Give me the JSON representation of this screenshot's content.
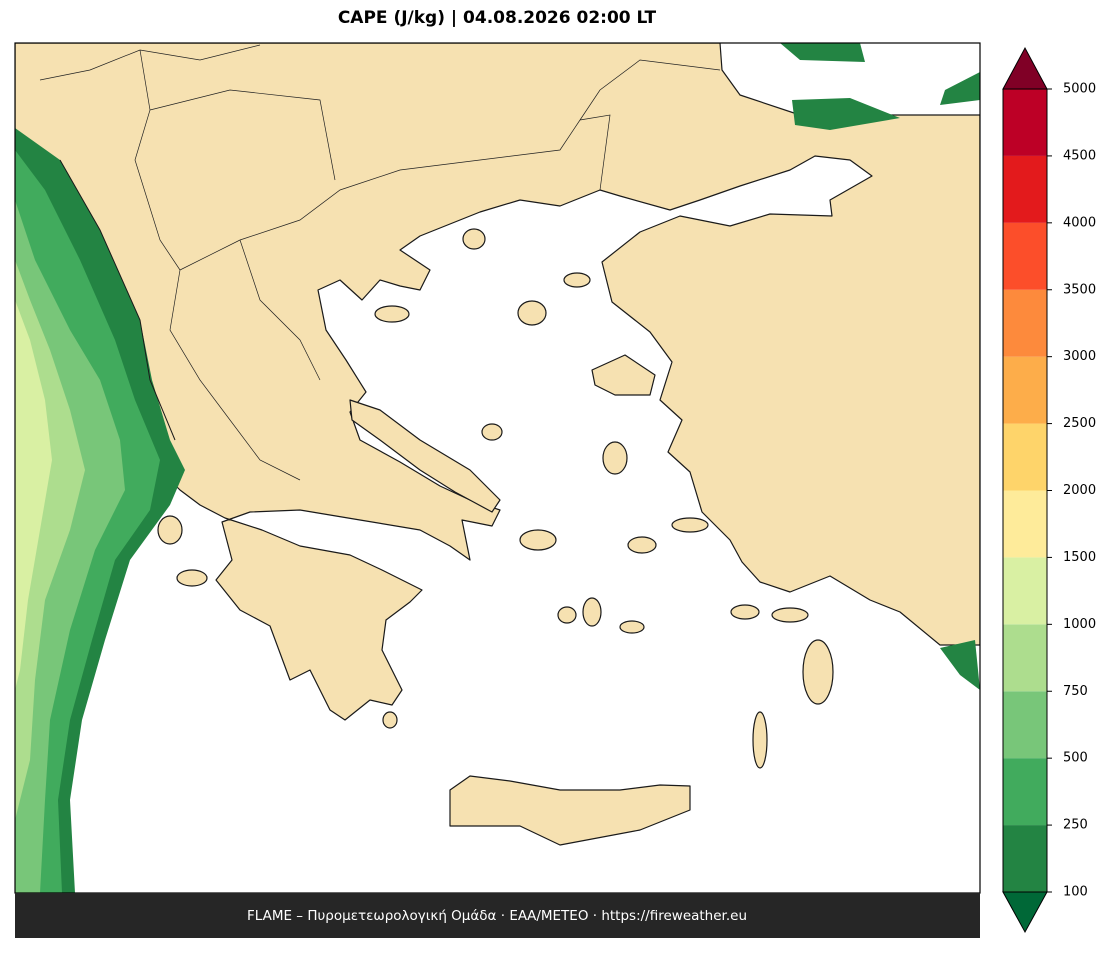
{
  "title": "CAPE (J/kg)  |  04.08.2026 02:00 LT",
  "footer": "FLAME – Πυρομετεωρολογική Ομάδα · ΕΑΑ/METEO · https://fireweather.eu",
  "colorbar": {
    "levels": [
      100,
      250,
      500,
      750,
      1000,
      1500,
      2000,
      2500,
      3000,
      3500,
      4000,
      4500,
      5000
    ],
    "colors": [
      "#238443",
      "#41ab5d",
      "#78c679",
      "#addd8e",
      "#d9f0a3",
      "#feeb9a",
      "#fed46a",
      "#fdad4a",
      "#fd8a3c",
      "#fc4e2a",
      "#e31a1c",
      "#bd0026"
    ],
    "under_color": "#006837",
    "over_color": "#800026"
  }
}
